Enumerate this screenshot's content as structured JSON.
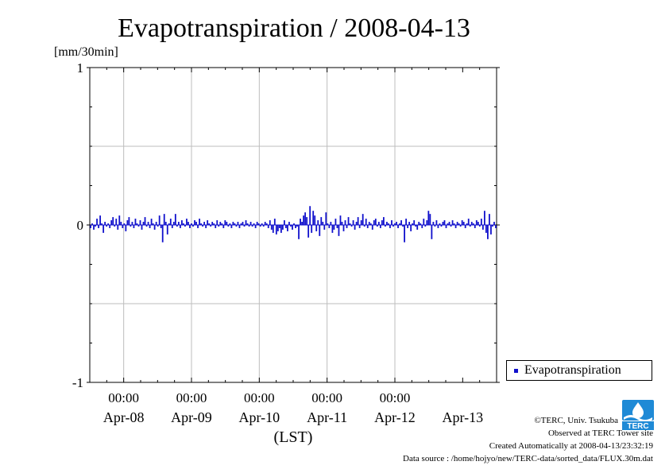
{
  "chart_data": {
    "type": "bar",
    "title": "Evapotranspiration / 2008-04-13",
    "ylabel": "[mm/30min]",
    "xlabel": "(LST)",
    "ylim": [
      -1,
      1
    ],
    "yticks": [
      "-1",
      "0",
      "1"
    ],
    "time_ticks": [
      "00:00",
      "00:00",
      "00:00",
      "00:00",
      "00:00"
    ],
    "date_ticks": [
      "Apr-08",
      "Apr-09",
      "Apr-10",
      "Apr-11",
      "Apr-12",
      "Apr-13"
    ],
    "grid": true,
    "legend_position": "bottom-right outside",
    "series": [
      {
        "name": "Evapotranspiration",
        "color": "#1010cc",
        "x_start": "2008-04-07 12:00",
        "interval": "30min",
        "values": [
          -0.02,
          0.01,
          -0.03,
          -0.01,
          0.04,
          -0.02,
          0.06,
          0.01,
          -0.05,
          0.02,
          -0.01,
          0.01,
          -0.02,
          0.03,
          0.05,
          -0.01,
          0.04,
          -0.03,
          0.06,
          0.02,
          -0.02,
          0.01,
          -0.04,
          0.03,
          0.05,
          -0.01,
          0.02,
          -0.02,
          0.04,
          0.01,
          -0.01,
          0.03,
          -0.03,
          0.02,
          0.05,
          -0.01,
          0.02,
          -0.02,
          0.04,
          0.01,
          -0.03,
          0.02,
          -0.01,
          0.06,
          -0.02,
          -0.11,
          0.07,
          0.02,
          -0.06,
          0.01,
          0.04,
          -0.02,
          0.02,
          0.07,
          -0.01,
          0.02,
          -0.02,
          0.03,
          0.01,
          -0.01,
          0.04,
          0.02,
          -0.02,
          0.01,
          -0.01,
          0.03,
          0.02,
          -0.02,
          0.04,
          0.01,
          -0.01,
          0.02,
          -0.02,
          0.03,
          0.01,
          -0.01,
          0.02,
          0.01,
          -0.02,
          0.03,
          -0.01,
          0.02,
          0.01,
          -0.02,
          0.03,
          0.02,
          -0.01,
          0.01,
          -0.02,
          0.02,
          0.01,
          -0.01,
          0.02,
          -0.02,
          0.01,
          0.02,
          -0.01,
          0.03,
          0.01,
          -0.01,
          0.02,
          -0.01,
          0.01,
          -0.02,
          0.02,
          0.01,
          -0.01,
          0.01,
          -0.01,
          0.02,
          0.01,
          -0.02,
          0.03,
          -0.03,
          -0.05,
          0.04,
          -0.06,
          -0.04,
          -0.02,
          -0.05,
          -0.03,
          0.03,
          -0.02,
          -0.04,
          0.02,
          -0.01,
          -0.03,
          0.01,
          -0.02,
          -0.01,
          -0.09,
          0.04,
          0.02,
          0.06,
          0.08,
          0.05,
          -0.08,
          0.12,
          -0.05,
          0.09,
          0.06,
          -0.04,
          0.03,
          -0.07,
          0.05,
          0.02,
          -0.03,
          0.08,
          0.01,
          -0.02,
          0.02,
          -0.05,
          -0.03,
          0.04,
          -0.02,
          -0.07,
          0.06,
          0.02,
          -0.04,
          0.03,
          -0.02,
          0.05,
          0.01,
          -0.01,
          0.03,
          -0.03,
          0.02,
          0.05,
          -0.02,
          0.03,
          0.07,
          -0.01,
          0.04,
          -0.02,
          0.02,
          0.01,
          -0.03,
          0.03,
          0.04,
          -0.01,
          0.02,
          -0.02,
          0.03,
          0.05,
          -0.01,
          0.02,
          0.01,
          -0.02,
          0.03,
          -0.01,
          0.01,
          0.02,
          -0.02,
          0.01,
          0.03,
          -0.01,
          -0.11,
          0.04,
          -0.02,
          0.02,
          -0.04,
          0.01,
          0.03,
          -0.01,
          -0.03,
          0.02,
          0.01,
          -0.02,
          0.04,
          -0.01,
          0.03,
          0.09,
          0.07,
          -0.09,
          0.02,
          -0.01,
          0.03,
          -0.02,
          0.01,
          -0.01,
          0.02,
          0.03,
          -0.02,
          0.01,
          0.02,
          -0.01,
          0.03,
          0.01,
          -0.02,
          0.02,
          0.01,
          -0.01,
          0.03,
          0.02,
          -0.02,
          0.01,
          0.04,
          -0.01,
          0.02,
          0.01,
          -0.02,
          0.03,
          0.02,
          -0.01,
          0.04,
          -0.03,
          0.09,
          -0.05,
          -0.09,
          0.07,
          -0.06,
          -0.01,
          0.02,
          -0.02
        ]
      }
    ]
  },
  "legend": {
    "label": "Evapotranspiration",
    "swatch_color": "#1010cc"
  },
  "credits": {
    "copyright": "©TERC, Univ. Tsukuba",
    "site": "Observed at TERC Tower site",
    "created": "Created Automatically at 2008-04-13/23:32:19",
    "source": "Data source : /home/hojyo/new/TERC-data/sorted_data/FLUX.30m.dat"
  },
  "logo": {
    "text": "TERC",
    "color": "#1f8ad6"
  }
}
